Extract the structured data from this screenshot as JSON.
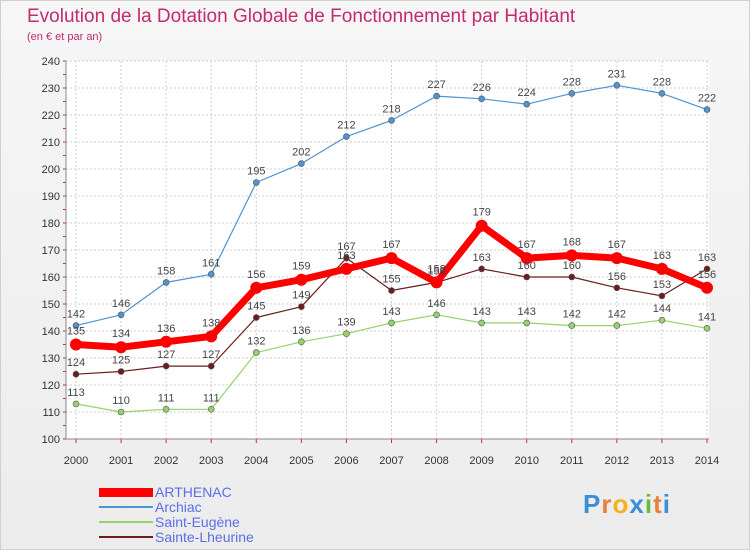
{
  "chart_data": {
    "type": "line",
    "title": "Evolution de la Dotation Globale de Fonctionnement par Habitant",
    "subtitle": "(en € et par an)",
    "x": [
      "2000",
      "2001",
      "2002",
      "2003",
      "2004",
      "2005",
      "2006",
      "2007",
      "2008",
      "2009",
      "2010",
      "2011",
      "2012",
      "2013",
      "2014"
    ],
    "ylim": [
      100,
      240
    ],
    "yticks": [
      100,
      110,
      120,
      130,
      140,
      150,
      160,
      170,
      180,
      190,
      200,
      210,
      220,
      230,
      240
    ],
    "grid": true,
    "legend_position": "bottom-left",
    "series": [
      {
        "name": "ARTHENAC",
        "color": "#ff0000",
        "emphasis": true,
        "values": [
          135,
          134,
          136,
          138,
          156,
          159,
          163,
          167,
          158,
          179,
          167,
          168,
          167,
          163,
          156
        ]
      },
      {
        "name": "Archiac",
        "color": "#4f93d0",
        "emphasis": false,
        "values": [
          142,
          146,
          158,
          161,
          195,
          202,
          212,
          218,
          227,
          226,
          224,
          228,
          231,
          228,
          222
        ]
      },
      {
        "name": "Saint-Eugène",
        "color": "#96d16a",
        "emphasis": false,
        "values": [
          113,
          110,
          111,
          111,
          132,
          136,
          139,
          143,
          146,
          143,
          143,
          142,
          142,
          144,
          141
        ]
      },
      {
        "name": "Sainte-Lheurine",
        "color": "#6b1d1d",
        "emphasis": false,
        "values": [
          124,
          125,
          127,
          127,
          145,
          149,
          167,
          155,
          158,
          163,
          160,
          160,
          156,
          153,
          163
        ]
      }
    ]
  },
  "logo": {
    "text": "Proxiti",
    "letters": [
      "P",
      "r",
      "o",
      "x",
      "i",
      "t",
      "i"
    ],
    "colors": [
      "#3a8fd8",
      "#e8803a",
      "#f2b21c",
      "#3a8fd8",
      "#6aba3c",
      "#e8803a",
      "#3a8fd8"
    ]
  }
}
